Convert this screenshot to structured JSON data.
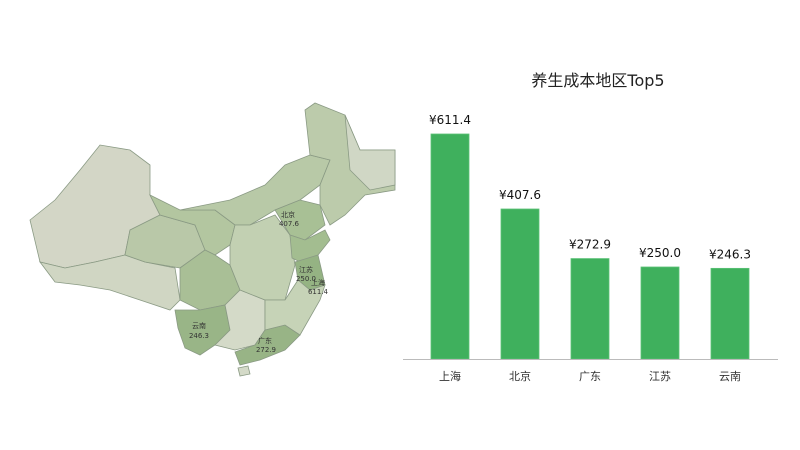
{
  "map": {
    "labels": [
      {
        "name": "北京",
        "value": "407.6"
      },
      {
        "name": "江苏",
        "value": "250.0"
      },
      {
        "name": "上海",
        "value": "611.4"
      },
      {
        "name": "云南",
        "value": "246.3"
      },
      {
        "name": "广东",
        "value": "272.9"
      }
    ],
    "colors": {
      "low": "#d3d8c8",
      "mid": "#b5c7a4",
      "high": "#8fb57f"
    }
  },
  "chart_data": {
    "type": "bar",
    "title": "养生成本地区Top5",
    "categories": [
      "上海",
      "北京",
      "广东",
      "江苏",
      "云南"
    ],
    "values": [
      611.4,
      407.6,
      272.9,
      250.0,
      246.3
    ],
    "value_labels": [
      "¥611.4",
      "¥407.6",
      "¥272.9",
      "¥250.0",
      "¥246.3"
    ],
    "ylim": [
      0,
      611.4
    ],
    "grid": false,
    "bar_color": "#3fb05d"
  }
}
